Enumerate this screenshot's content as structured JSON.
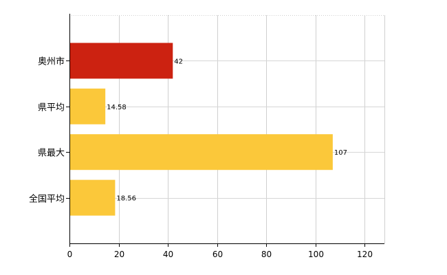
{
  "chart_data": {
    "type": "bar",
    "orientation": "horizontal",
    "categories": [
      "奥州市",
      "県平均",
      "県最大",
      "全国平均"
    ],
    "values": [
      42,
      14.58,
      107,
      18.56
    ],
    "value_labels": [
      "42",
      "14.58",
      "107",
      "18.56"
    ],
    "bar_colors": [
      "#cc2211",
      "#fbc83a",
      "#fbc83a",
      "#fbc83a"
    ],
    "xlim": [
      0,
      128
    ],
    "xticks": [
      0,
      20,
      40,
      60,
      80,
      100,
      120
    ],
    "grid": true,
    "legend": "none"
  }
}
